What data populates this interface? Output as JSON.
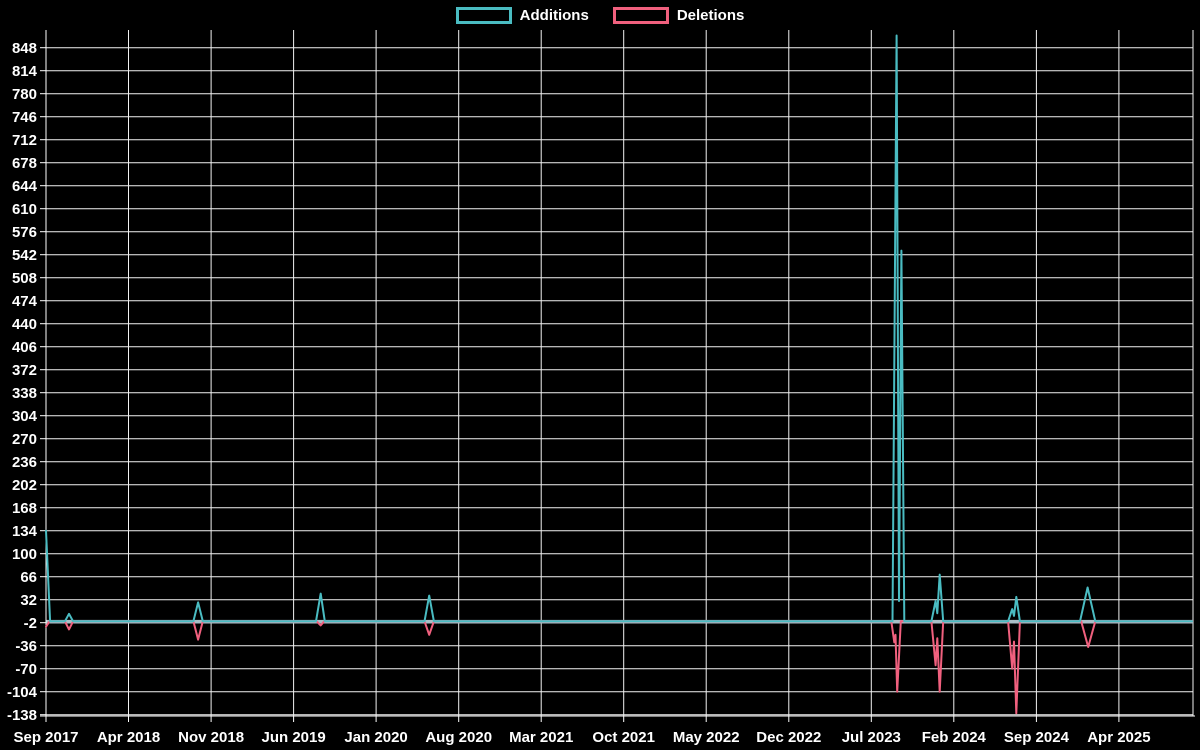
{
  "chart_data": {
    "type": "line",
    "title": "",
    "legend": {
      "position": "top-center",
      "items": [
        "Additions",
        "Deletions"
      ]
    },
    "colors": {
      "additions": "#4abcc2",
      "deletions": "#f0607e",
      "grid": "#f2f2f2",
      "axis": "#ffffff",
      "baseline": "#a9bfc7",
      "background": "#000000",
      "text": "#ffffff"
    },
    "x_axis": {
      "unit": "months since Sep 2017",
      "tick_labels": [
        "Sep 2017",
        "Apr 2018",
        "Nov 2018",
        "Jun 2019",
        "Jan 2020",
        "Aug 2020",
        "Mar 2021",
        "Oct 2021",
        "May 2022",
        "Dec 2022",
        "Jul 2023",
        "Feb 2024",
        "Sep 2024",
        "Apr 2025"
      ],
      "tick_months": [
        0,
        7,
        14,
        21,
        28,
        35,
        42,
        49,
        56,
        63,
        70,
        77,
        84,
        91
      ]
    },
    "y_axis": {
      "ticks": [
        848,
        814,
        780,
        746,
        712,
        678,
        644,
        610,
        576,
        542,
        508,
        474,
        440,
        406,
        372,
        338,
        304,
        270,
        236,
        202,
        168,
        134,
        100,
        66,
        32,
        -2,
        -36,
        -70,
        -104,
        -138
      ],
      "range": [
        -138,
        848
      ]
    },
    "series": [
      {
        "name": "Additions",
        "color_key": "additions",
        "points": [
          [
            0,
            134
          ],
          [
            0.35,
            0
          ],
          [
            1.6,
            0
          ],
          [
            1.95,
            11
          ],
          [
            2.3,
            0
          ],
          [
            12.5,
            0
          ],
          [
            12.9,
            28
          ],
          [
            13.3,
            0
          ],
          [
            22.9,
            0
          ],
          [
            23.3,
            41
          ],
          [
            23.65,
            0
          ],
          [
            32.1,
            0
          ],
          [
            32.5,
            38
          ],
          [
            32.9,
            0
          ],
          [
            71.8,
            0
          ],
          [
            72.15,
            866
          ],
          [
            72.35,
            30
          ],
          [
            72.55,
            548
          ],
          [
            72.8,
            0
          ],
          [
            75.1,
            0
          ],
          [
            75.45,
            30
          ],
          [
            75.6,
            12
          ],
          [
            75.8,
            69
          ],
          [
            76.1,
            0
          ],
          [
            81.6,
            0
          ],
          [
            81.95,
            18
          ],
          [
            82.1,
            8
          ],
          [
            82.3,
            36
          ],
          [
            82.6,
            0
          ],
          [
            87.7,
            0
          ],
          [
            88.35,
            50
          ],
          [
            89.0,
            0
          ],
          [
            97.2,
            0
          ]
        ]
      },
      {
        "name": "Deletions",
        "color_key": "deletions",
        "points": [
          [
            0,
            -8
          ],
          [
            0.3,
            0
          ],
          [
            1.6,
            0
          ],
          [
            1.95,
            -12
          ],
          [
            2.3,
            0
          ],
          [
            12.5,
            0
          ],
          [
            12.9,
            -27
          ],
          [
            13.3,
            0
          ],
          [
            22.95,
            0
          ],
          [
            23.3,
            -6
          ],
          [
            23.6,
            0
          ],
          [
            32.1,
            0
          ],
          [
            32.5,
            -20
          ],
          [
            32.9,
            0
          ],
          [
            71.7,
            0
          ],
          [
            71.95,
            -31
          ],
          [
            72.05,
            -20
          ],
          [
            72.2,
            -104
          ],
          [
            72.5,
            0
          ],
          [
            75.1,
            0
          ],
          [
            75.45,
            -65
          ],
          [
            75.6,
            -25
          ],
          [
            75.8,
            -104
          ],
          [
            76.1,
            0
          ],
          [
            81.6,
            0
          ],
          [
            81.95,
            -70
          ],
          [
            82.1,
            -30
          ],
          [
            82.3,
            -136
          ],
          [
            82.6,
            0
          ],
          [
            87.8,
            0
          ],
          [
            88.4,
            -38
          ],
          [
            89.0,
            0
          ],
          [
            97.2,
            0
          ]
        ]
      }
    ],
    "events": [
      {
        "date": "Sep 2017",
        "additions": 134,
        "deletions": -8
      },
      {
        "date": "Nov 2017",
        "additions": 11,
        "deletions": -12
      },
      {
        "date": "Oct 2018",
        "additions": 28,
        "deletions": -27
      },
      {
        "date": "Aug 2019",
        "additions": 41,
        "deletions": -6
      },
      {
        "date": "May 2020",
        "additions": 38,
        "deletions": -20
      },
      {
        "date": "Sep 2023",
        "additions": 866,
        "deletions": -104
      },
      {
        "date": "Oct 2023",
        "additions": 548,
        "deletions": -31
      },
      {
        "date": "Jan 2024",
        "additions": 69,
        "deletions": -104
      },
      {
        "date": "Jul 2024",
        "additions": 36,
        "deletions": -136
      },
      {
        "date": "Jan 2025",
        "additions": 50,
        "deletions": -38
      }
    ],
    "layout": {
      "grid": true,
      "zero_baseline_highlighted": true
    }
  }
}
